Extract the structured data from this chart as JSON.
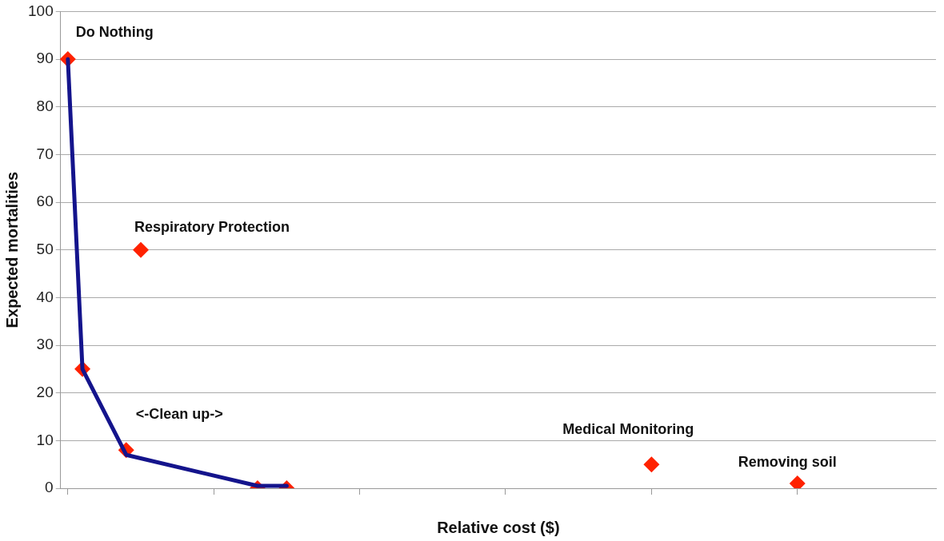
{
  "chart_data": {
    "type": "scatter",
    "xlabel": "Relative cost ($)",
    "ylabel": "Expected mortalities",
    "categories": [
      null,
      null,
      null,
      null,
      null,
      null,
      null,
      null,
      null,
      null,
      null,
      null,
      null,
      null,
      null,
      null,
      null,
      null,
      null,
      null,
      null,
      null,
      null,
      null,
      null,
      null,
      null,
      null,
      null,
      null,
      null,
      null,
      null,
      null,
      null,
      null,
      null,
      null,
      null,
      null,
      null,
      null,
      null,
      null,
      null,
      null,
      null,
      null,
      null,
      null,
      null,
      null,
      null,
      null,
      null,
      null,
      null,
      null,
      null,
      null
    ],
    "ylim": [
      0,
      100
    ],
    "yticks": [
      0,
      10,
      20,
      30,
      40,
      50,
      60,
      70,
      80,
      90,
      100
    ],
    "grid": "y",
    "tick_labels": "y",
    "series": [
      {
        "type": "line",
        "color": "#14148c",
        "values": [
          90,
          25,
          null,
          null,
          7,
          null,
          null,
          null,
          null,
          null,
          null,
          null,
          null,
          0.5,
          null,
          0.5,
          null,
          null,
          null,
          null,
          null,
          null,
          null,
          null,
          null,
          null,
          null,
          null,
          null,
          null,
          null,
          null,
          null,
          null,
          null,
          null,
          null,
          null,
          null,
          null,
          null,
          null,
          null,
          null,
          null,
          null,
          null,
          null,
          null,
          null,
          null,
          null,
          null,
          null,
          null,
          null,
          null,
          null,
          null,
          null
        ],
        "line_style": "solid"
      },
      {
        "color": "#ff2200",
        "values": [
          90,
          25,
          null,
          null,
          8,
          50,
          null,
          null,
          null,
          null,
          null,
          null,
          null,
          0,
          null,
          0,
          null,
          null,
          null,
          null,
          null,
          null,
          null,
          null,
          null,
          null,
          null,
          null,
          null,
          null,
          null,
          null,
          null,
          null,
          null,
          null,
          null,
          null,
          null,
          null,
          5,
          null,
          null,
          null,
          null,
          null,
          null,
          null,
          null,
          null,
          1,
          null,
          null,
          null,
          null,
          null,
          null,
          null,
          null,
          null
        ],
        "marker": "diamond"
      }
    ],
    "annotations": [
      "Do Nothing",
      "Respiratory Protection",
      "<-Clean up->",
      "Medical Monitoring",
      "Removing soil"
    ]
  }
}
